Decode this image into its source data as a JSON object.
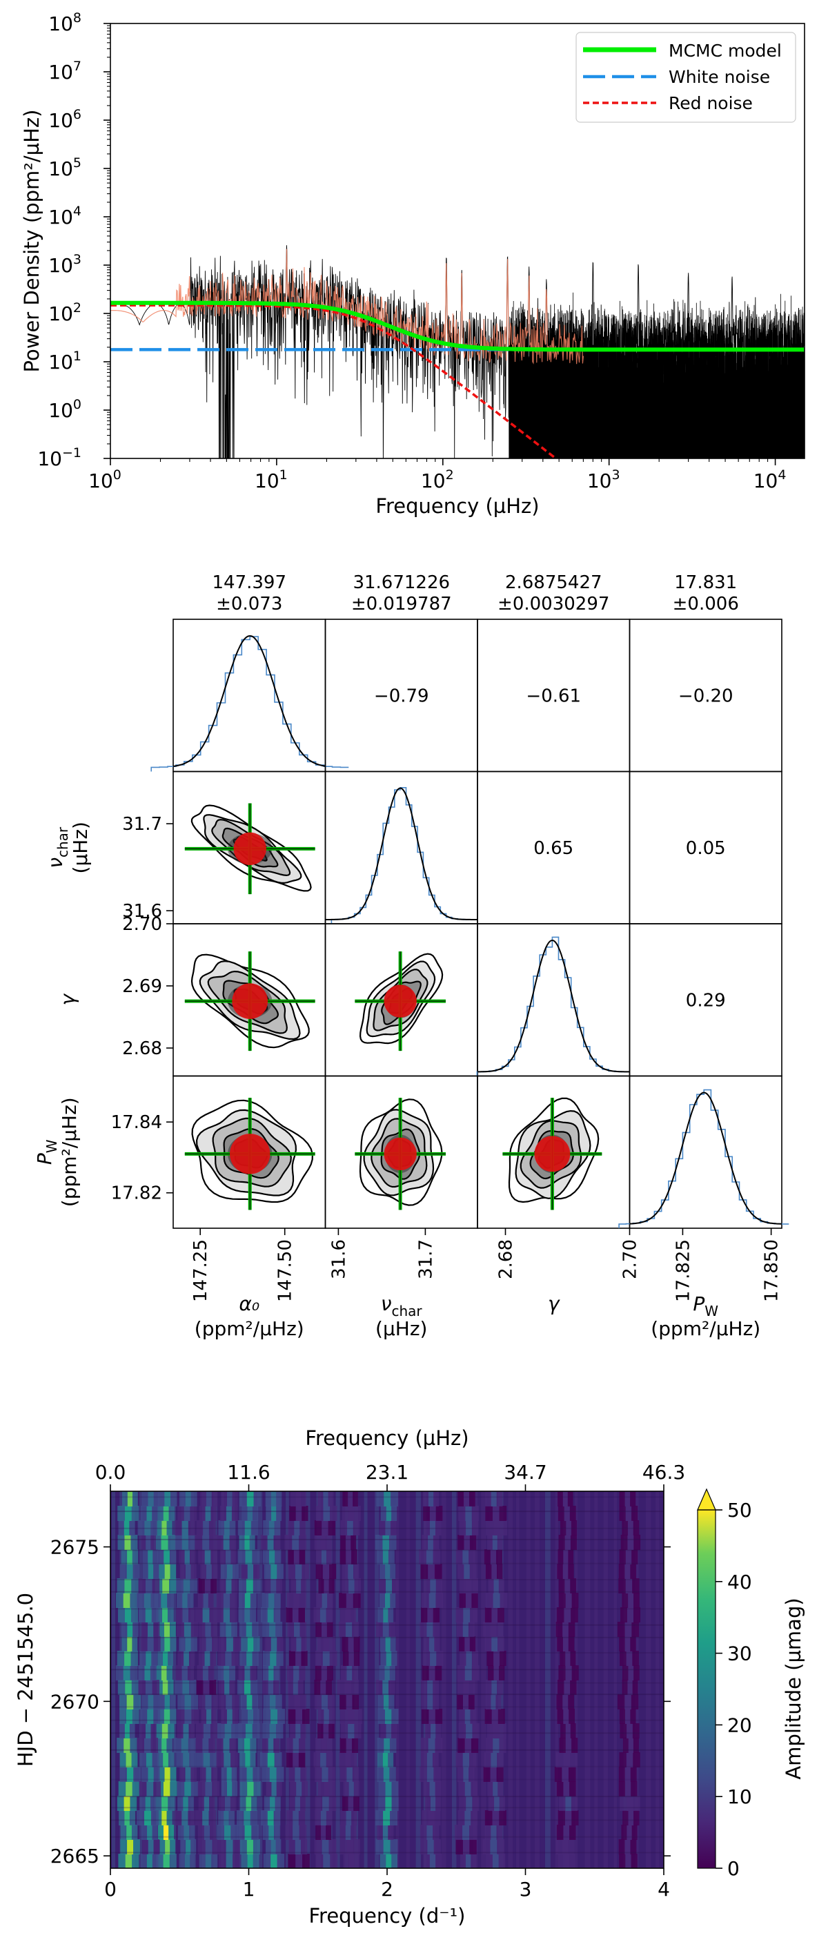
{
  "chart_data": [
    {
      "type": "line",
      "title": "",
      "xlabel": "Frequency (µHz)",
      "ylabel": "Power Density (ppm²/µHz)",
      "xscale": "log",
      "yscale": "log",
      "xlim": [
        1,
        15000
      ],
      "ylim": [
        0.1,
        100000000
      ],
      "x_ticks": [
        {
          "v": 1,
          "e": "0"
        },
        {
          "v": 10,
          "e": "1"
        },
        {
          "v": 100,
          "e": "2"
        },
        {
          "v": 1000,
          "e": "3"
        },
        {
          "v": 10000,
          "e": "4"
        }
      ],
      "y_ticks": [
        {
          "v": 0.1,
          "e": "−1"
        },
        {
          "v": 1,
          "e": "0"
        },
        {
          "v": 10,
          "e": "1"
        },
        {
          "v": 100,
          "e": "2"
        },
        {
          "v": 1000,
          "e": "3"
        },
        {
          "v": 10000,
          "e": "4"
        },
        {
          "v": 100000,
          "e": "5"
        },
        {
          "v": 1000000,
          "e": "6"
        },
        {
          "v": 10000000,
          "e": "7"
        },
        {
          "v": 100000000,
          "e": "8"
        }
      ],
      "tick_base": "10",
      "legend_position": "top-right",
      "series": [
        {
          "name": "MCMC model",
          "style": "solid",
          "color": "#00ee00",
          "model": {
            "alpha0": 147.397,
            "nu_char": 31.671226,
            "gamma": 2.6875427,
            "white": 17.831
          }
        },
        {
          "name": "White noise",
          "style": "dashed",
          "color": "#1f8fe8",
          "value": 17.831
        },
        {
          "name": "Red noise",
          "style": "dashed",
          "color": "#ee1111",
          "model": {
            "alpha0": 147.397,
            "nu_char": 31.671226,
            "gamma": 2.6875427
          }
        }
      ],
      "spectrum_note": "black periodogram with orange smoothed spectrum; noise level ~18, low-frequency peaks up to ~2000"
    },
    {
      "type": "corner",
      "parameters": [
        {
          "label": "α₀",
          "unit": "(ppm²/µHz)",
          "value": "147.397",
          "error": "±0.073",
          "mean": 147.397,
          "sd": 0.073,
          "range": [
            147.17,
            147.62
          ],
          "ticks": [
            "147.25",
            "147.50"
          ]
        },
        {
          "label": "ν",
          "sub": "char",
          "unit": "(µHz)",
          "value": "31.671226",
          "error": "±0.019787",
          "mean": 31.671226,
          "sd": 0.019787,
          "range": [
            31.585,
            31.76
          ],
          "ticks": [
            "31.6",
            "31.7"
          ]
        },
        {
          "label": "γ",
          "unit": "",
          "value": "2.6875427",
          "error": "±0.0030297",
          "mean": 2.6875427,
          "sd": 0.0030297,
          "range": [
            2.6755,
            2.7
          ],
          "ticks": [
            "2.68",
            "2.69",
            "2.70"
          ]
        },
        {
          "label": "P",
          "sub": "W",
          "unit": "(ppm²/µHz)",
          "value": "17.831",
          "error": "±0.006",
          "mean": 17.831,
          "sd": 0.006,
          "range": [
            17.81,
            17.853
          ],
          "ticks": [
            "17.82",
            "17.84"
          ]
        }
      ],
      "x_tick_labels": [
        [
          "147.25",
          "147.50"
        ],
        [
          "31.6",
          "31.7"
        ],
        [
          "2.68",
          "2.70"
        ],
        [
          "17.825",
          "17.850"
        ]
      ],
      "correlations": [
        {
          "row": 0,
          "col": 1,
          "text": "−0.79",
          "r": -0.79
        },
        {
          "row": 0,
          "col": 2,
          "text": "−0.61",
          "r": -0.61
        },
        {
          "row": 0,
          "col": 3,
          "text": "−0.20",
          "r": -0.2
        },
        {
          "row": 1,
          "col": 2,
          "text": "0.65",
          "r": 0.65
        },
        {
          "row": 1,
          "col": 3,
          "text": "0.05",
          "r": 0.05
        },
        {
          "row": 2,
          "col": 3,
          "text": "0.29",
          "r": 0.29
        }
      ]
    },
    {
      "type": "heatmap",
      "xlabel": "Frequency (d⁻¹)",
      "xlabel_top": "Frequency (µHz)",
      "ylabel": "HJD − 2451545.0",
      "colorbar_label": "Amplitude (µmag)",
      "xlim": [
        0,
        4
      ],
      "ylim": [
        2664.6,
        2676.8
      ],
      "zlim": [
        0,
        50
      ],
      "x_ticks": [
        "0",
        "1",
        "2",
        "3",
        "4"
      ],
      "x_ticks_top": [
        "0.0",
        "11.6",
        "23.1",
        "34.7",
        "46.3"
      ],
      "y_ticks": [
        "2665",
        "2670",
        "2675"
      ],
      "colorbar_ticks": [
        "0",
        "10",
        "20",
        "30",
        "40",
        "50"
      ],
      "peaks_d": [
        {
          "f": 0.13,
          "amp": 36
        },
        {
          "f": 0.4,
          "amp": 40
        },
        {
          "f": 0.28,
          "amp": 22
        },
        {
          "f": 0.55,
          "amp": 20
        },
        {
          "f": 0.7,
          "amp": 16
        },
        {
          "f": 0.85,
          "amp": 19
        },
        {
          "f": 1.0,
          "amp": 28
        },
        {
          "f": 1.17,
          "amp": 23
        },
        {
          "f": 1.35,
          "amp": 12
        },
        {
          "f": 1.55,
          "amp": 11
        },
        {
          "f": 1.73,
          "amp": 11
        },
        {
          "f": 2.0,
          "amp": 24
        },
        {
          "f": 2.32,
          "amp": 13
        },
        {
          "f": 2.58,
          "amp": 12
        },
        {
          "f": 2.78,
          "amp": 11
        },
        {
          "f": 3.3,
          "amp": 9
        },
        {
          "f": 3.75,
          "amp": 8
        }
      ]
    }
  ]
}
